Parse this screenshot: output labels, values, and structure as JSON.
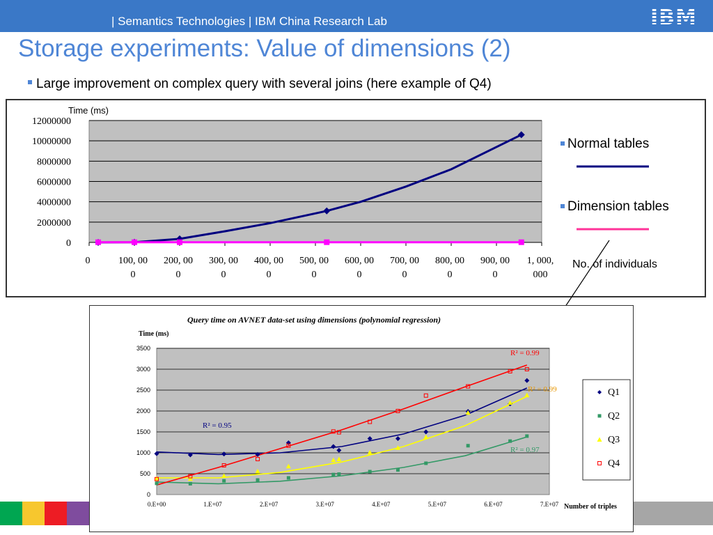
{
  "header": {
    "breadcrumb": "| Semantics Technologies | IBM China Research Lab",
    "logo": "IBM"
  },
  "slide": {
    "title": "Storage experiments: Value of dimensions (2)",
    "bullet": "Large improvement on complex query with several joins (here example of Q4)",
    "annotation": "No. of individuals"
  },
  "colors": {
    "header_bg": "#3a78c7",
    "title": "#4f86d6",
    "stripes": [
      "#00a651",
      "#f7c72e",
      "#ed1c24",
      "#7f4c9e"
    ]
  },
  "chart_data": [
    {
      "type": "line",
      "ylabel": "Time (ms)",
      "ylim": [
        0,
        12000000
      ],
      "yticks": [
        "12000000",
        "10000000",
        "8000000",
        "6000000",
        "4000000",
        "2000000",
        "0"
      ],
      "xlim": [
        0,
        1000000
      ],
      "xticks": [
        {
          "l1": "0",
          "l2": ""
        },
        {
          "l1": "100, 00",
          "l2": "0"
        },
        {
          "l1": "200, 00",
          "l2": "0"
        },
        {
          "l1": "300, 00",
          "l2": "0"
        },
        {
          "l1": "400, 00",
          "l2": "0"
        },
        {
          "l1": "500, 00",
          "l2": "0"
        },
        {
          "l1": "600, 00",
          "l2": "0"
        },
        {
          "l1": "700, 00",
          "l2": "0"
        },
        {
          "l1": "800, 00",
          "l2": "0"
        },
        {
          "l1": "900, 00",
          "l2": "0"
        },
        {
          "l1": "1, 000,",
          "l2": "000"
        }
      ],
      "grid": true,
      "legend_position": "right",
      "series": [
        {
          "name": "Normal tables",
          "color": "#000080",
          "x": [
            20000,
            100000,
            200000,
            300000,
            400000,
            525000,
            600000,
            700000,
            800000,
            955000
          ],
          "y": [
            0,
            20000,
            350000,
            1100000,
            1900000,
            3100000,
            4000000,
            5500000,
            7200000,
            10600000
          ],
          "markers_at": [
            20000,
            100000,
            200000,
            525000,
            955000
          ]
        },
        {
          "name": "Dimension tables",
          "color": "#ff00ff",
          "x": [
            20000,
            100000,
            200000,
            525000,
            955000
          ],
          "y": [
            20000,
            20000,
            20000,
            20000,
            20000
          ]
        }
      ]
    },
    {
      "type": "scatter",
      "title": "Query time on AVNET data-set using dimensions (polynomial regression)",
      "ylabel": "Time (ms)",
      "xlabel": "Number of triples",
      "ylim": [
        0,
        3500
      ],
      "yticks": [
        3500,
        3000,
        2500,
        2000,
        1500,
        1000,
        500,
        0
      ],
      "xlim": [
        0,
        70000000
      ],
      "xticks": [
        "0.E+00",
        "1.E+07",
        "2.E+07",
        "3.E+07",
        "4.E+07",
        "5.E+07",
        "6.E+07",
        "7.E+07"
      ],
      "grid": true,
      "legend_position": "right",
      "series": [
        {
          "name": "Q1",
          "marker": "diamond",
          "color": "#000080",
          "x": [
            0,
            6000000,
            12000000,
            18000000,
            23500000,
            31500000,
            32500000,
            38000000,
            43000000,
            48000000,
            55500000,
            63000000,
            66000000
          ],
          "y": [
            980,
            950,
            970,
            960,
            1240,
            1150,
            1060,
            1340,
            1340,
            1500,
            1990,
            2170,
            2730
          ],
          "fit": [
            1020,
            960,
            1000,
            1150,
            1450,
            1900,
            2550
          ],
          "r2": "R² = 0.95",
          "r2_color": "#000080"
        },
        {
          "name": "Q2",
          "marker": "square",
          "color": "#339966",
          "x": [
            0,
            6000000,
            12000000,
            18000000,
            23500000,
            31500000,
            32500000,
            38000000,
            43000000,
            48000000,
            55500000,
            63000000,
            66000000
          ],
          "y": [
            270,
            260,
            330,
            350,
            400,
            480,
            490,
            550,
            590,
            750,
            1170,
            1280,
            1400
          ],
          "fit": [
            300,
            260,
            320,
            450,
            650,
            930,
            1380
          ],
          "r2": "R² = 0.97",
          "r2_color": "#339966"
        },
        {
          "name": "Q3",
          "marker": "triangle",
          "color": "#ffff00",
          "x": [
            0,
            6000000,
            12000000,
            18000000,
            23500000,
            31500000,
            32500000,
            38000000,
            43000000,
            48000000,
            55500000,
            63000000,
            66000000
          ],
          "y": [
            390,
            380,
            450,
            560,
            680,
            830,
            850,
            1010,
            1120,
            1380,
            1960,
            2200,
            2380
          ],
          "fit": [
            400,
            400,
            530,
            780,
            1150,
            1650,
            2350
          ],
          "r2": "R² = 0.99",
          "r2_color": "#e69500"
        },
        {
          "name": "Q4",
          "marker": "open-square",
          "color": "#ff0000",
          "x": [
            0,
            6000000,
            12000000,
            18000000,
            23500000,
            31500000,
            32500000,
            38000000,
            43000000,
            48000000,
            55500000,
            63000000,
            66000000
          ],
          "y": [
            370,
            440,
            700,
            850,
            1170,
            1510,
            1490,
            1740,
            2000,
            2370,
            2590,
            2950,
            3000
          ],
          "fit": [
            230,
            650,
            1100,
            1550,
            2050,
            2580,
            3100
          ],
          "r2": "R² = 0.99",
          "r2_color": "#ff0000"
        }
      ]
    }
  ]
}
